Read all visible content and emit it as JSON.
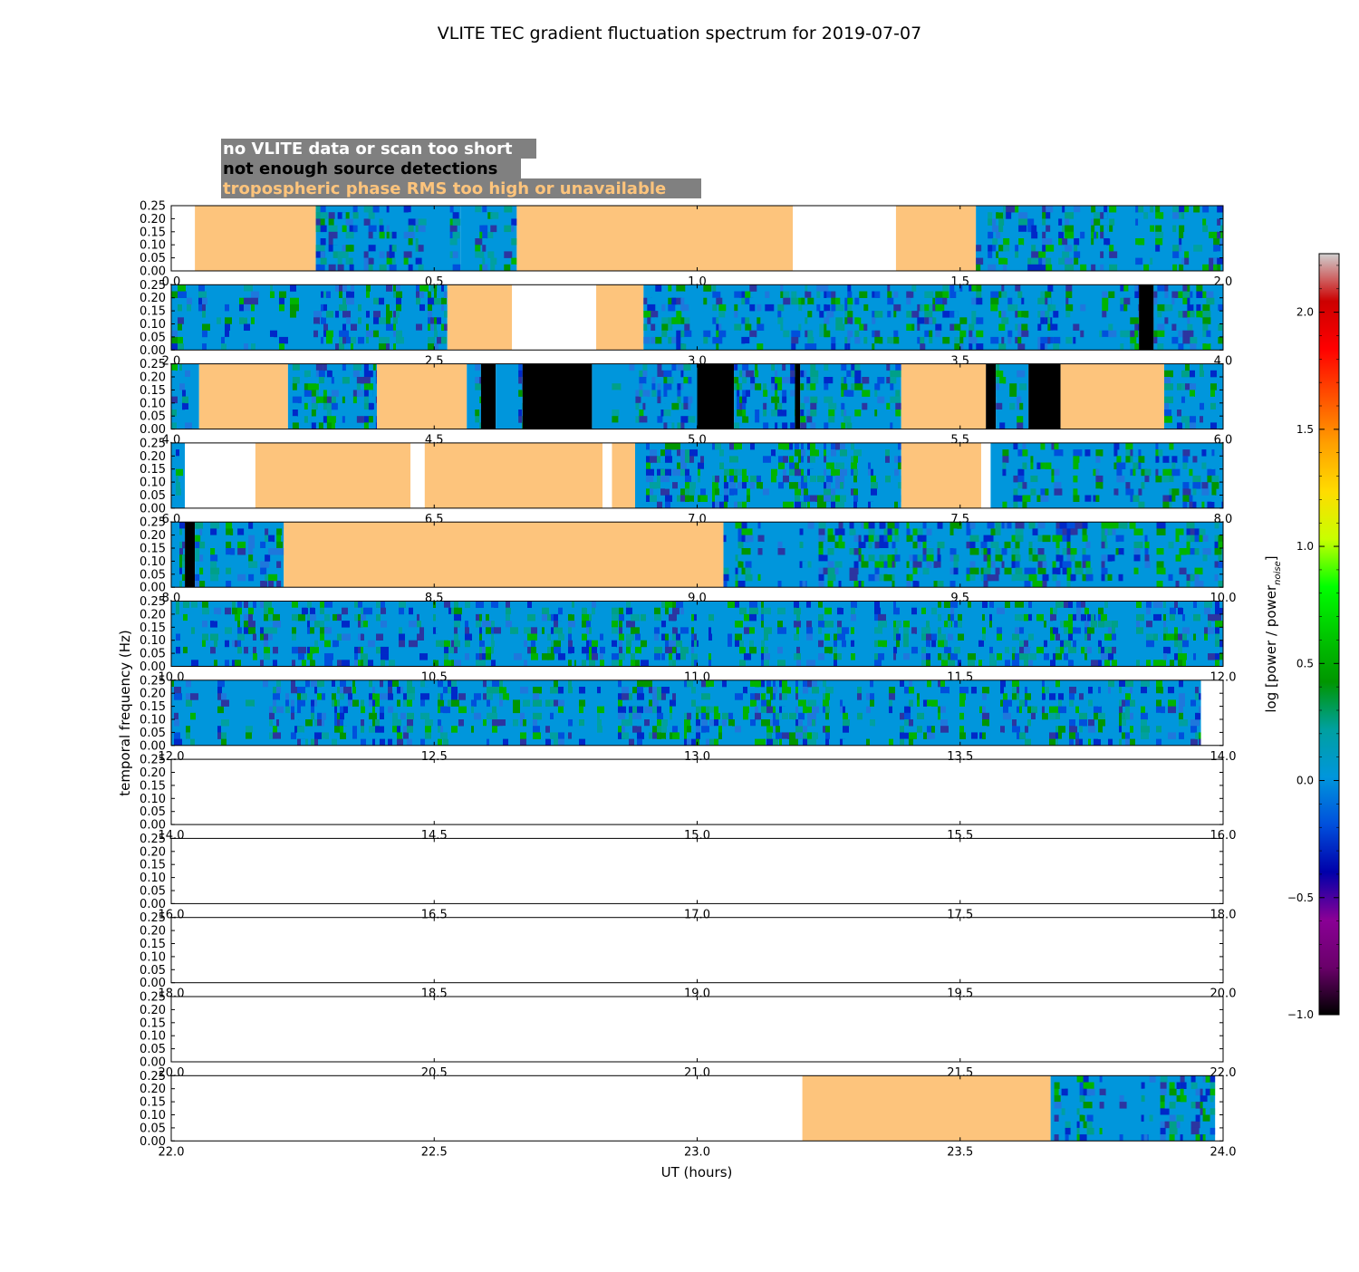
{
  "chart_data": {
    "type": "heatmap",
    "title": "VLITE TEC gradient fluctuation spectrum for 2019-07-07",
    "xlabel": "UT (hours)",
    "ylabel": "temporal frequency (Hz)",
    "ylim": [
      0,
      0.25
    ],
    "y_ticks": [
      "0.00",
      "0.05",
      "0.10",
      "0.15",
      "0.20",
      "0.25"
    ],
    "legend": {
      "placement": "top-left",
      "entries": [
        {
          "label": "no VLITE data or scan too short",
          "text_color": "#ffffff",
          "meaning": "blank"
        },
        {
          "label": "not enough source detections",
          "text_color": "#000000",
          "meaning": "black"
        },
        {
          "label": "tropospheric phase RMS too high or unavailable",
          "text_color": "#fdc47c",
          "meaning": "orange"
        }
      ],
      "box_color": "#808080"
    },
    "colorbar": {
      "label": "log [power / power",
      "label_sub": "noise",
      "label_end": "]",
      "range": [
        -1.0,
        2.25
      ],
      "ticks": [
        {
          "value": -1.0,
          "label": "−1.0"
        },
        {
          "value": -0.5,
          "label": "−0.5"
        },
        {
          "value": 0.0,
          "label": "0.0"
        },
        {
          "value": 0.5,
          "label": "0.5"
        },
        {
          "value": 1.0,
          "label": "1.0"
        },
        {
          "value": 1.5,
          "label": "1.5"
        },
        {
          "value": 2.0,
          "label": "2.0"
        }
      ],
      "colormap": [
        "#000000",
        "#6a006a",
        "#8a0096",
        "#0000aa",
        "#0050dc",
        "#0096dc",
        "#00a0a0",
        "#009600",
        "#00c800",
        "#00ff00",
        "#c8ff00",
        "#ffdc00",
        "#ffa000",
        "#ff5000",
        "#ff0000",
        "#cc0000",
        "#d0d0d0"
      ]
    },
    "colors": {
      "orange": "#fdc47c",
      "black": "#000000",
      "background": "#0096dc",
      "blank": "#ffffff"
    },
    "panels": [
      {
        "xlim": [
          0,
          2
        ],
        "x_ticks": [
          "0.0",
          "0.5",
          "1.0",
          "1.5",
          "2.0"
        ],
        "segments": [
          [
            0.0,
            0.045,
            "blank"
          ],
          [
            0.045,
            0.275,
            "orange"
          ],
          [
            0.275,
            0.55,
            "data"
          ],
          [
            0.55,
            0.657,
            "data"
          ],
          [
            0.657,
            1.182,
            "orange"
          ],
          [
            1.182,
            1.378,
            "blank"
          ],
          [
            1.378,
            1.53,
            "orange"
          ],
          [
            1.53,
            2.0,
            "data"
          ]
        ]
      },
      {
        "xlim": [
          2,
          4
        ],
        "x_ticks": [
          "2.0",
          "2.5",
          "3.0",
          "3.5",
          "4.0"
        ],
        "segments": [
          [
            2.0,
            2.525,
            "data"
          ],
          [
            2.525,
            2.648,
            "orange"
          ],
          [
            2.648,
            2.808,
            "blank"
          ],
          [
            2.808,
            2.898,
            "orange"
          ],
          [
            2.898,
            3.84,
            "data"
          ],
          [
            3.84,
            3.868,
            "black"
          ],
          [
            3.868,
            4.0,
            "data"
          ]
        ]
      },
      {
        "xlim": [
          4,
          6
        ],
        "x_ticks": [
          "4.0",
          "4.5",
          "5.0",
          "5.5",
          "6.0"
        ],
        "segments": [
          [
            4.0,
            4.053,
            "data"
          ],
          [
            4.053,
            4.222,
            "orange"
          ],
          [
            4.222,
            4.391,
            "data"
          ],
          [
            4.391,
            4.562,
            "orange"
          ],
          [
            4.562,
            4.589,
            "data"
          ],
          [
            4.589,
            4.617,
            "black"
          ],
          [
            4.617,
            4.668,
            "data"
          ],
          [
            4.668,
            4.8,
            "black"
          ],
          [
            4.8,
            5.0,
            "data"
          ],
          [
            5.0,
            5.07,
            "black"
          ],
          [
            5.07,
            5.186,
            "data"
          ],
          [
            5.186,
            5.196,
            "black"
          ],
          [
            5.196,
            5.388,
            "data"
          ],
          [
            5.388,
            5.549,
            "orange"
          ],
          [
            5.549,
            5.568,
            "black"
          ],
          [
            5.568,
            5.63,
            "data"
          ],
          [
            5.63,
            5.691,
            "black"
          ],
          [
            5.691,
            5.888,
            "orange"
          ],
          [
            5.888,
            6.0,
            "data"
          ]
        ]
      },
      {
        "xlim": [
          6,
          8
        ],
        "x_ticks": [
          "6.0",
          "6.5",
          "7.0",
          "7.5",
          "8.0"
        ],
        "segments": [
          [
            6.0,
            6.026,
            "data"
          ],
          [
            6.026,
            6.16,
            "blank"
          ],
          [
            6.16,
            6.455,
            "orange"
          ],
          [
            6.455,
            6.482,
            "blank"
          ],
          [
            6.482,
            6.82,
            "orange"
          ],
          [
            6.82,
            6.838,
            "blank"
          ],
          [
            6.838,
            6.882,
            "orange"
          ],
          [
            6.882,
            7.388,
            "data"
          ],
          [
            7.388,
            7.54,
            "orange"
          ],
          [
            7.54,
            7.558,
            "blank"
          ],
          [
            7.558,
            8.0,
            "data"
          ]
        ]
      },
      {
        "xlim": [
          8,
          10
        ],
        "x_ticks": [
          "8.0",
          "8.5",
          "9.0",
          "9.5",
          "10.0"
        ],
        "segments": [
          [
            8.0,
            8.026,
            "data"
          ],
          [
            8.026,
            8.045,
            "black"
          ],
          [
            8.045,
            8.214,
            "data"
          ],
          [
            8.214,
            9.05,
            "orange"
          ],
          [
            9.05,
            10.0,
            "data"
          ]
        ]
      },
      {
        "xlim": [
          10,
          12
        ],
        "x_ticks": [
          "10.0",
          "10.5",
          "11.0",
          "11.5",
          "12.0"
        ],
        "segments": [
          [
            10.0,
            12.0,
            "data"
          ]
        ]
      },
      {
        "xlim": [
          12,
          14
        ],
        "x_ticks": [
          "12.0",
          "12.5",
          "13.0",
          "13.5",
          "14.0"
        ],
        "segments": [
          [
            12.0,
            13.958,
            "data"
          ],
          [
            13.958,
            14.0,
            "blank"
          ]
        ]
      },
      {
        "xlim": [
          14,
          16
        ],
        "x_ticks": [
          "14.0",
          "14.5",
          "15.0",
          "15.5",
          "16.0"
        ],
        "segments": []
      },
      {
        "xlim": [
          16,
          18
        ],
        "x_ticks": [
          "16.0",
          "16.5",
          "17.0",
          "17.5",
          "18.0"
        ],
        "segments": []
      },
      {
        "xlim": [
          18,
          20
        ],
        "x_ticks": [
          "18.0",
          "18.5",
          "19.0",
          "19.5",
          "20.0"
        ],
        "segments": []
      },
      {
        "xlim": [
          20,
          22
        ],
        "x_ticks": [
          "20.0",
          "20.5",
          "21.0",
          "21.5",
          "22.0"
        ],
        "segments": []
      },
      {
        "xlim": [
          22,
          24
        ],
        "x_ticks": [
          "22.0",
          "22.5",
          "23.0",
          "23.5",
          "24.0"
        ],
        "segments": [
          [
            22.0,
            23.2,
            "blank"
          ],
          [
            23.2,
            23.672,
            "orange"
          ],
          [
            23.672,
            23.985,
            "data"
          ],
          [
            23.985,
            24.0,
            "blank"
          ]
        ]
      }
    ]
  }
}
